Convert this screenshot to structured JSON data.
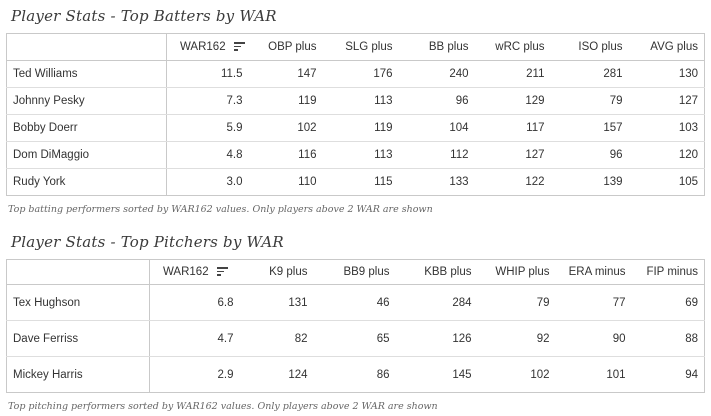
{
  "batting": {
    "title": "Player Stats - Top Batters by WAR",
    "caption": "Top batting performers sorted by WAR162 values. Only players above 2 WAR are shown",
    "columns": [
      "",
      "WAR162",
      "OBP plus",
      "SLG plus",
      "BB plus",
      "wRC plus",
      "ISO plus",
      "AVG plus"
    ],
    "sorted_column_icon": "sort-descending-icon",
    "rows": [
      [
        "Ted Williams",
        "11.5",
        "147",
        "176",
        "240",
        "211",
        "281",
        "130"
      ],
      [
        "Johnny Pesky",
        "7.3",
        "119",
        "113",
        "96",
        "129",
        "79",
        "127"
      ],
      [
        "Bobby Doerr",
        "5.9",
        "102",
        "119",
        "104",
        "117",
        "157",
        "103"
      ],
      [
        "Dom DiMaggio",
        "4.8",
        "116",
        "113",
        "112",
        "127",
        "96",
        "120"
      ],
      [
        "Rudy York",
        "3.0",
        "110",
        "115",
        "133",
        "122",
        "139",
        "105"
      ]
    ]
  },
  "pitching": {
    "title": "Player Stats - Top Pitchers by WAR",
    "caption": "Top pitching performers sorted by WAR162 values. Only players above 2 WAR are shown",
    "columns": [
      "",
      "WAR162",
      "K9 plus",
      "BB9 plus",
      "KBB plus",
      "WHIP plus",
      "ERA minus",
      "FIP minus"
    ],
    "sorted_column_icon": "sort-descending-icon",
    "rows": [
      [
        "Tex Hughson",
        "6.8",
        "131",
        "46",
        "284",
        "79",
        "77",
        "69"
      ],
      [
        "Dave Ferriss",
        "4.7",
        "82",
        "65",
        "126",
        "92",
        "90",
        "88"
      ],
      [
        "Mickey Harris",
        "2.9",
        "124",
        "86",
        "145",
        "102",
        "101",
        "94"
      ]
    ]
  }
}
